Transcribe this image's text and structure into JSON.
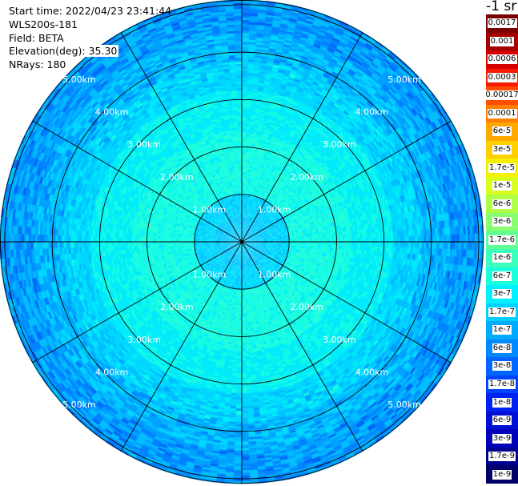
{
  "header": {
    "start_time": "Start time: 2022/04/23 23:41:44",
    "instrument": "WLS200s-181",
    "field": "Field: BETA",
    "elevation": "Elevation(deg): 35.30",
    "nrays": "NRays: 180"
  },
  "colorbar": {
    "unit_label": "-1 sr",
    "labels": [
      "0.0017",
      "0.001",
      "0.0006",
      "0.0003",
      "0.00017",
      "0.0001",
      "6e-5",
      "3e-5",
      "1.7e-5",
      "1e-5",
      "6e-6",
      "3e-6",
      "1.7e-6",
      "1e-6",
      "6e-7",
      "3e-7",
      "1.7e-7",
      "1e-7",
      "6e-8",
      "3e-8",
      "1.7e-8",
      "1e-8",
      "6e-9",
      "3e-9",
      "1.7e-9",
      "1e-9"
    ],
    "colors": [
      "#7a0000",
      "#a50000",
      "#d40000",
      "#f51a00",
      "#ff4d00",
      "#ff8000",
      "#ffa800",
      "#ffcf00",
      "#f5f000",
      "#d8ff1f",
      "#b0ff47",
      "#88ff6f",
      "#62ff95",
      "#3cffbb",
      "#1affdc",
      "#00f0ff",
      "#00d0ff",
      "#00aaff",
      "#0088ff",
      "#0066ff",
      "#0044ff",
      "#0022f0",
      "#0010d5",
      "#0000b8",
      "#000090",
      "#000068"
    ]
  },
  "ppi": {
    "ring_labels": [
      "1.00km",
      "2.00km",
      "3.00km",
      "4.00km",
      "5.00km"
    ],
    "ring_values_km": [
      1,
      2,
      3,
      4,
      5
    ],
    "max_range_km": 5.1,
    "n_rays": 180,
    "sector_lines": 12
  }
}
